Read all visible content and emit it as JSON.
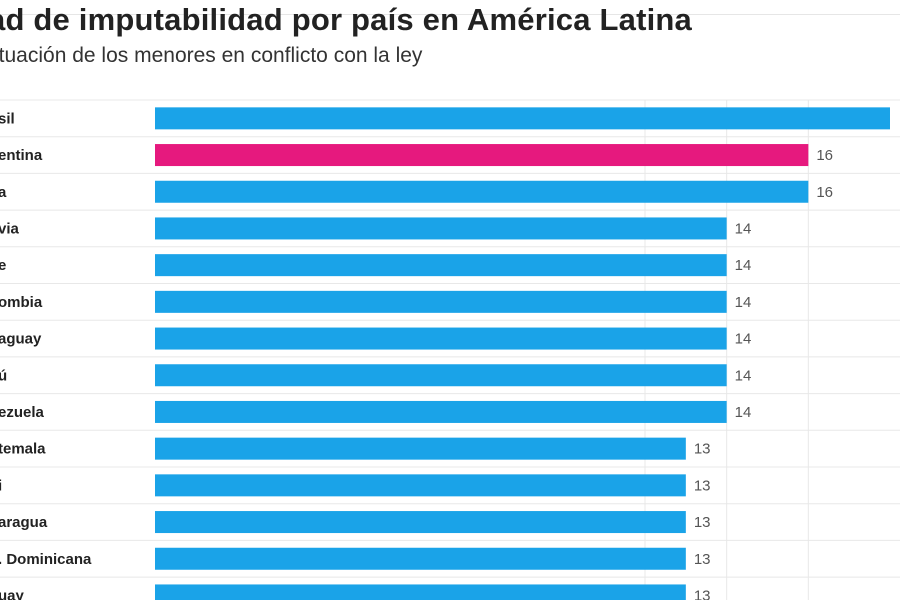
{
  "header": {
    "title": "ad de imputabilidad por país en América Latina",
    "subtitle": "ituación de los menores en conflicto con la ley"
  },
  "chart_data": {
    "type": "bar",
    "orientation": "horizontal",
    "categories": [
      "sil",
      "entina",
      "a",
      "via",
      "e",
      "ombia",
      "aguay",
      "ú",
      "ezuela",
      "temala",
      "i",
      "aragua",
      ". Dominicana",
      "uay"
    ],
    "values": [
      18,
      16,
      16,
      14,
      14,
      14,
      14,
      14,
      14,
      13,
      13,
      13,
      13,
      13
    ],
    "value_labels": [
      "",
      "16",
      "16",
      "14",
      "14",
      "14",
      "14",
      "14",
      "14",
      "13",
      "13",
      "13",
      "13",
      "13"
    ],
    "highlight_index": 1,
    "colors": {
      "bar": "#1aa3e8",
      "highlight": "#e6197e",
      "grid": "#e8e8e8"
    },
    "xlim": [
      0,
      18
    ],
    "grid": true,
    "title": "",
    "xlabel": "",
    "ylabel": ""
  }
}
